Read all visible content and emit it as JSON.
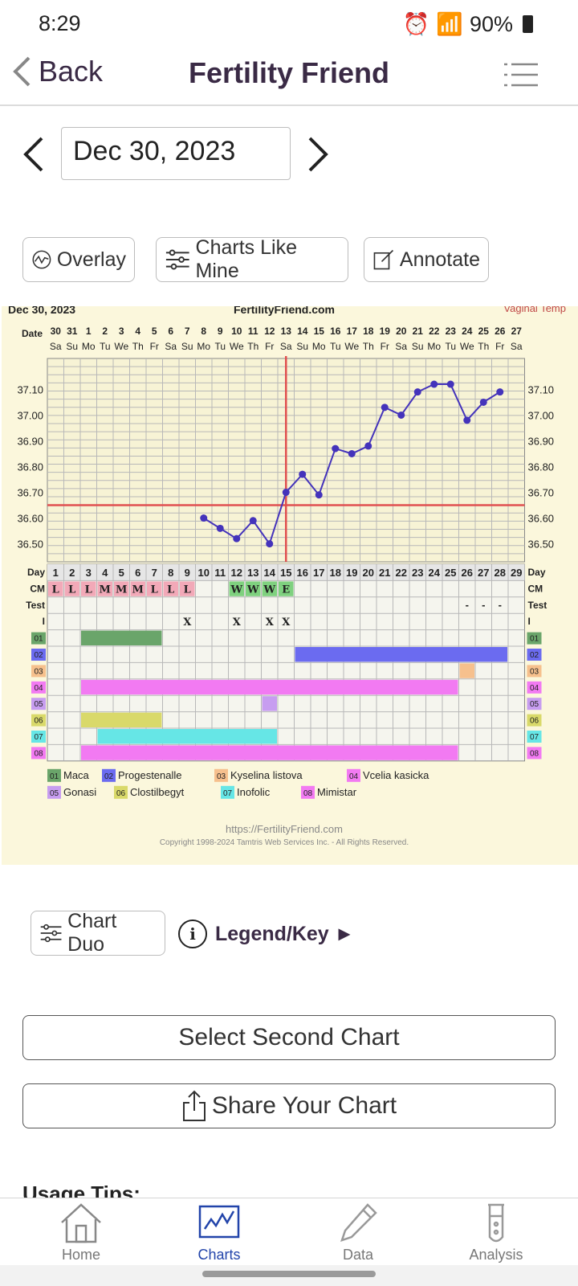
{
  "status": {
    "time": "8:29",
    "battery": "90%"
  },
  "appbar": {
    "back_label": "Back",
    "title": "Fertility Friend"
  },
  "datebar": {
    "date": "Dec 30, 2023"
  },
  "actions": {
    "overlay": "Overlay",
    "charts_like_mine": "Charts Like Mine",
    "annotate": "Annotate"
  },
  "chart_data": {
    "type": "line",
    "header_date": "Dec 30, 2023",
    "site": "FertilityFriend.com",
    "temp_type": "Vaginal Temp",
    "date_row_label": "Date",
    "dates": [
      "30",
      "31",
      "1",
      "2",
      "3",
      "4",
      "5",
      "6",
      "7",
      "8",
      "9",
      "10",
      "11",
      "12",
      "13",
      "14",
      "15",
      "16",
      "17",
      "18",
      "19",
      "20",
      "21",
      "22",
      "23",
      "24",
      "25",
      "26",
      "27"
    ],
    "weekdays": [
      "Sa",
      "Su",
      "Mo",
      "Tu",
      "We",
      "Th",
      "Fr",
      "Sa",
      "Su",
      "Mo",
      "Tu",
      "We",
      "Th",
      "Fr",
      "Sa",
      "Su",
      "Mo",
      "Tu",
      "We",
      "Th",
      "Fr",
      "Sa",
      "Su",
      "Mo",
      "Tu",
      "We",
      "Th",
      "Fr",
      "Sa"
    ],
    "y_ticks": [
      "37.10",
      "37.00",
      "36.90",
      "36.80",
      "36.70",
      "36.60",
      "36.50"
    ],
    "ylim": [
      36.43,
      37.22
    ],
    "temps": [
      {
        "day": 10,
        "temp": 36.6
      },
      {
        "day": 11,
        "temp": 36.56
      },
      {
        "day": 12,
        "temp": 36.52
      },
      {
        "day": 13,
        "temp": 36.59
      },
      {
        "day": 14,
        "temp": 36.5
      },
      {
        "day": 15,
        "temp": 36.7
      },
      {
        "day": 16,
        "temp": 36.77
      },
      {
        "day": 17,
        "temp": 36.69
      },
      {
        "day": 18,
        "temp": 36.87
      },
      {
        "day": 19,
        "temp": 36.85
      },
      {
        "day": 20,
        "temp": 36.88
      },
      {
        "day": 21,
        "temp": 37.03
      },
      {
        "day": 22,
        "temp": 37.0
      },
      {
        "day": 23,
        "temp": 37.09
      },
      {
        "day": 24,
        "temp": 37.12
      },
      {
        "day": 25,
        "temp": 37.12
      },
      {
        "day": 26,
        "temp": 36.98
      },
      {
        "day": 27,
        "temp": 37.05
      },
      {
        "day": 28,
        "temp": 37.09
      }
    ],
    "coverline": 36.65,
    "ovulation_day": 15,
    "day_row_label": "Day",
    "cycle_days": [
      "1",
      "2",
      "3",
      "4",
      "5",
      "6",
      "7",
      "8",
      "9",
      "10",
      "11",
      "12",
      "13",
      "14",
      "15",
      "16",
      "17",
      "18",
      "19",
      "20",
      "21",
      "22",
      "23",
      "24",
      "25",
      "26",
      "27",
      "28",
      "29"
    ],
    "cm_label": "CM",
    "cm": [
      {
        "day": 1,
        "code": "L"
      },
      {
        "day": 2,
        "code": "L"
      },
      {
        "day": 3,
        "code": "L"
      },
      {
        "day": 4,
        "code": "M"
      },
      {
        "day": 5,
        "code": "M"
      },
      {
        "day": 6,
        "code": "M"
      },
      {
        "day": 7,
        "code": "L"
      },
      {
        "day": 8,
        "code": "L"
      },
      {
        "day": 9,
        "code": "L"
      },
      {
        "day": 12,
        "code": "W"
      },
      {
        "day": 13,
        "code": "W"
      },
      {
        "day": 14,
        "code": "W"
      },
      {
        "day": 15,
        "code": "E"
      }
    ],
    "test_label": "Test",
    "tests": [
      {
        "day": 26,
        "mark": "-"
      },
      {
        "day": 27,
        "mark": "-"
      },
      {
        "day": 28,
        "mark": "-"
      }
    ],
    "intercourse_label": "I",
    "intercourse": [
      {
        "day": 9,
        "mark": "X"
      },
      {
        "day": 12,
        "mark": "X"
      },
      {
        "day": 14,
        "mark": "X"
      },
      {
        "day": 15,
        "mark": "X"
      }
    ],
    "meds": [
      {
        "code": "01",
        "name": "Maca",
        "color": "#6aa56a",
        "days": [
          3,
          7
        ]
      },
      {
        "code": "02",
        "name": "Progestenalle",
        "color": "#6b6bf0",
        "days": [
          16,
          28
        ]
      },
      {
        "code": "03",
        "name": "Kyselina listova",
        "color": "#f6c08d",
        "days": [
          26,
          26
        ]
      },
      {
        "code": "04",
        "name": "Vcelia kasicka",
        "color": "#f27af2",
        "days": [
          3,
          25
        ]
      },
      {
        "code": "05",
        "name": "Gonasi",
        "color": "#c79df0",
        "days": [
          14,
          14
        ]
      },
      {
        "code": "06",
        "name": "Clostilbegyt",
        "color": "#d9d96a",
        "days": [
          3,
          7
        ]
      },
      {
        "code": "07",
        "name": "Inofolic",
        "color": "#66e6e6",
        "days": [
          4,
          14
        ]
      },
      {
        "code": "08",
        "name": "Mimistar",
        "color": "#f27af2",
        "days": [
          3,
          25
        ]
      }
    ],
    "url": "https://FertilityFriend.com",
    "copyright": "Copyright 1998-2024 Tamtris Web Services Inc. - All Rights Reserved."
  },
  "duo": {
    "chart_duo": "Chart Duo",
    "legend_key": "Legend/Key ►"
  },
  "buttons": {
    "select_second": "Select Second Chart",
    "share": "Share Your Chart"
  },
  "usage": {
    "title": "Usage Tips:"
  },
  "nav": {
    "home": "Home",
    "charts": "Charts",
    "data": "Data",
    "analysis": "Analysis"
  },
  "colors": {
    "accent": "#3a2a45",
    "line": "#4433bb",
    "coverline": "#e05050",
    "active_tab": "#2244aa"
  }
}
